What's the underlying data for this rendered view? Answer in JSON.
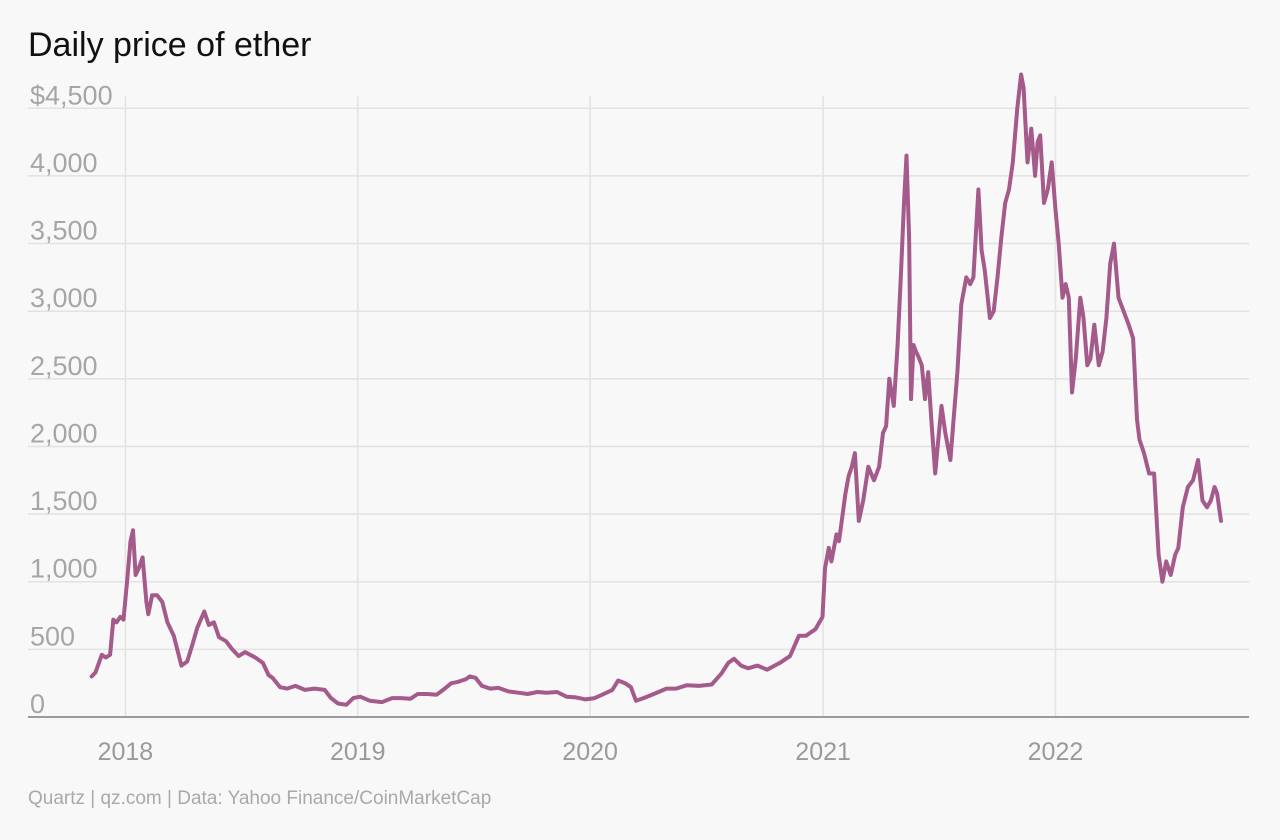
{
  "chart_data": {
    "type": "line",
    "title": "Daily price of ether",
    "subtitle": "",
    "source": "Quartz | qz.com | Data: Yahoo Finance/CoinMarketCap",
    "xlabel": "",
    "ylabel": "",
    "xlim": [
      "2017-08-01",
      "2022-11-01"
    ],
    "ylim": [
      0,
      4650
    ],
    "yticks": [
      0,
      500,
      1000,
      1500,
      2000,
      2500,
      3000,
      3500,
      4000,
      4500
    ],
    "ytick_labels": [
      "0",
      "500",
      "1,000",
      "1,500",
      "2,000",
      "2,500",
      "3,000",
      "3,500",
      "4,000",
      "4,500"
    ],
    "ytick_prefix_top": "$",
    "xticks": [
      "2018-01-01",
      "2019-01-01",
      "2020-01-01",
      "2021-01-01",
      "2022-01-01"
    ],
    "xtick_labels": [
      "2018",
      "2019",
      "2020",
      "2021",
      "2022"
    ],
    "grid": true,
    "legend": "none",
    "color": "#a45a8a",
    "series": [
      {
        "name": "",
        "x": [
          "2017-11-09",
          "2017-11-15",
          "2017-11-25",
          "2017-12-01",
          "2017-12-08",
          "2017-12-13",
          "2017-12-18",
          "2017-12-24",
          "2017-12-29",
          "2018-01-04",
          "2018-01-09",
          "2018-01-13",
          "2018-01-17",
          "2018-01-22",
          "2018-01-28",
          "2018-02-03",
          "2018-02-06",
          "2018-02-12",
          "2018-02-20",
          "2018-02-28",
          "2018-03-08",
          "2018-03-18",
          "2018-03-30",
          "2018-04-08",
          "2018-04-16",
          "2018-04-24",
          "2018-05-05",
          "2018-05-12",
          "2018-05-20",
          "2018-05-28",
          "2018-06-08",
          "2018-06-18",
          "2018-06-28",
          "2018-07-08",
          "2018-07-16",
          "2018-07-24",
          "2018-08-05",
          "2018-08-14",
          "2018-08-20",
          "2018-09-01",
          "2018-09-12",
          "2018-09-25",
          "2018-10-10",
          "2018-10-25",
          "2018-11-10",
          "2018-11-20",
          "2018-12-01",
          "2018-12-14",
          "2018-12-25",
          "2019-01-05",
          "2019-01-20",
          "2019-02-08",
          "2019-02-24",
          "2019-03-10",
          "2019-03-25",
          "2019-04-05",
          "2019-04-20",
          "2019-05-05",
          "2019-05-15",
          "2019-05-28",
          "2019-06-08",
          "2019-06-20",
          "2019-06-26",
          "2019-07-05",
          "2019-07-15",
          "2019-07-28",
          "2019-08-10",
          "2019-08-25",
          "2019-09-10",
          "2019-09-25",
          "2019-10-10",
          "2019-10-25",
          "2019-11-10",
          "2019-11-25",
          "2019-12-10",
          "2019-12-25",
          "2020-01-08",
          "2020-01-20",
          "2020-02-05",
          "2020-02-14",
          "2020-02-25",
          "2020-03-05",
          "2020-03-13",
          "2020-03-25",
          "2020-04-10",
          "2020-04-30",
          "2020-05-15",
          "2020-06-01",
          "2020-06-20",
          "2020-07-10",
          "2020-07-25",
          "2020-08-05",
          "2020-08-14",
          "2020-08-25",
          "2020-09-05",
          "2020-09-20",
          "2020-10-05",
          "2020-10-25",
          "2020-11-10",
          "2020-11-24",
          "2020-12-05",
          "2020-12-20",
          "2020-12-31",
          "2021-01-04",
          "2021-01-10",
          "2021-01-14",
          "2021-01-22",
          "2021-01-26",
          "2021-02-05",
          "2021-02-10",
          "2021-02-15",
          "2021-02-20",
          "2021-02-26",
          "2021-03-05",
          "2021-03-13",
          "2021-03-22",
          "2021-03-30",
          "2021-04-05",
          "2021-04-10",
          "2021-04-15",
          "2021-04-22",
          "2021-04-28",
          "2021-05-03",
          "2021-05-08",
          "2021-05-12",
          "2021-05-16",
          "2021-05-19",
          "2021-05-23",
          "2021-05-27",
          "2021-06-01",
          "2021-06-05",
          "2021-06-10",
          "2021-06-15",
          "2021-06-20",
          "2021-06-26",
          "2021-07-01",
          "2021-07-06",
          "2021-07-12",
          "2021-07-20",
          "2021-07-25",
          "2021-07-31",
          "2021-08-06",
          "2021-08-14",
          "2021-08-20",
          "2021-08-25",
          "2021-09-02",
          "2021-09-07",
          "2021-09-12",
          "2021-09-20",
          "2021-09-26",
          "2021-10-02",
          "2021-10-08",
          "2021-10-14",
          "2021-10-20",
          "2021-10-26",
          "2021-11-02",
          "2021-11-08",
          "2021-11-12",
          "2021-11-18",
          "2021-11-24",
          "2021-11-30",
          "2021-12-04",
          "2021-12-08",
          "2021-12-14",
          "2021-12-20",
          "2021-12-26",
          "2022-01-01",
          "2022-01-06",
          "2022-01-12",
          "2022-01-17",
          "2022-01-22",
          "2022-01-27",
          "2022-02-02",
          "2022-02-09",
          "2022-02-14",
          "2022-02-20",
          "2022-02-25",
          "2022-03-03",
          "2022-03-10",
          "2022-03-16",
          "2022-03-22",
          "2022-03-28",
          "2022-04-03",
          "2022-04-10",
          "2022-04-18",
          "2022-04-26",
          "2022-05-03",
          "2022-05-09",
          "2022-05-13",
          "2022-05-20",
          "2022-05-28",
          "2022-06-05",
          "2022-06-12",
          "2022-06-18",
          "2022-06-24",
          "2022-07-01",
          "2022-07-08",
          "2022-07-13",
          "2022-07-20",
          "2022-07-28",
          "2022-08-05",
          "2022-08-13",
          "2022-08-20",
          "2022-08-27",
          "2022-09-02",
          "2022-09-08",
          "2022-09-12",
          "2022-09-18"
        ],
        "values": [
          300,
          330,
          460,
          440,
          460,
          720,
          700,
          740,
          720,
          1020,
          1300,
          1380,
          1050,
          1100,
          1180,
          850,
          760,
          900,
          900,
          850,
          700,
          600,
          380,
          410,
          530,
          660,
          780,
          680,
          700,
          590,
          560,
          500,
          450,
          480,
          460,
          440,
          400,
          310,
          290,
          220,
          210,
          230,
          200,
          210,
          200,
          140,
          100,
          90,
          140,
          150,
          120,
          110,
          140,
          140,
          135,
          170,
          170,
          165,
          200,
          250,
          260,
          280,
          300,
          290,
          230,
          210,
          215,
          190,
          180,
          170,
          185,
          180,
          185,
          150,
          145,
          130,
          140,
          165,
          200,
          270,
          250,
          220,
          120,
          140,
          170,
          210,
          210,
          235,
          230,
          240,
          320,
          400,
          430,
          380,
          360,
          380,
          350,
          400,
          450,
          600,
          600,
          650,
          740,
          1100,
          1250,
          1150,
          1350,
          1300,
          1650,
          1780,
          1850,
          1950,
          1450,
          1600,
          1850,
          1750,
          1850,
          2100,
          2150,
          2500,
          2300,
          2750,
          3250,
          3800,
          4150,
          3550,
          2350,
          2750,
          2700,
          2650,
          2600,
          2350,
          2550,
          2200,
          1800,
          2050,
          2300,
          2100,
          1900,
          2200,
          2550,
          3050,
          3250,
          3200,
          3250,
          3900,
          3450,
          3300,
          2950,
          3000,
          3250,
          3550,
          3800,
          3900,
          4100,
          4500,
          4750,
          4650,
          4100,
          4350,
          4000,
          4250,
          4300,
          3800,
          3900,
          4100,
          3750,
          3500,
          3100,
          3200,
          3100,
          2400,
          2650,
          3100,
          2950,
          2600,
          2650,
          2900,
          2600,
          2700,
          2950,
          3350,
          3500,
          3100,
          3000,
          2900,
          2800,
          2200,
          2050,
          1950,
          1800,
          1800,
          1200,
          1000,
          1150,
          1050,
          1200,
          1250,
          1550,
          1700,
          1750,
          1900,
          1600,
          1550,
          1600,
          1700,
          1650,
          1450
        ]
      }
    ]
  }
}
